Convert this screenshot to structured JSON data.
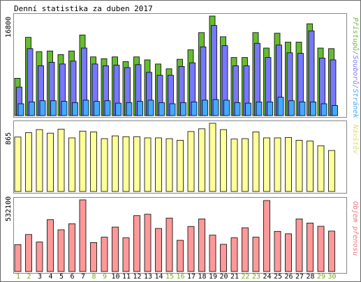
{
  "chart_data": {
    "type": "bar",
    "title": "Denní statistika za duben 2017",
    "categories": [
      "1",
      "2",
      "3",
      "4",
      "5",
      "6",
      "7",
      "8",
      "9",
      "10",
      "11",
      "12",
      "13",
      "14",
      "15",
      "16",
      "17",
      "18",
      "19",
      "20",
      "21",
      "22",
      "23",
      "24",
      "25",
      "26",
      "27",
      "28",
      "29",
      "30"
    ],
    "weekend_days": [
      "1",
      "2",
      "8",
      "9",
      "15",
      "16",
      "22",
      "23",
      "29",
      "30"
    ],
    "panels": [
      {
        "id": "hits",
        "ymax_label": "16800",
        "ymax": 16800,
        "legend": [
          {
            "text": "Přístupů",
            "color": "#66bb33"
          },
          {
            "text": "/",
            "color": "#7777cc"
          },
          {
            "text": "Souborů",
            "color": "#7777ff"
          },
          {
            "text": "/",
            "color": "#7777cc"
          },
          {
            "text": "Stránek",
            "color": "#44aaff"
          }
        ],
        "series": [
          {
            "name": "Přístupů",
            "color": "#66bb33",
            "values": [
              6300,
              13200,
              10800,
              10900,
              10300,
              10900,
              13600,
              9900,
              9600,
              9900,
              9100,
              9900,
              9400,
              8700,
              7900,
              9500,
              11100,
              14000,
              16800,
              13300,
              9800,
              9800,
              14000,
              11400,
              13900,
              12400,
              12400,
              15500,
              11400,
              11300
            ]
          },
          {
            "name": "Souborů",
            "color": "#7777ff",
            "values": [
              4800,
              11300,
              8400,
              9000,
              8700,
              9200,
              11400,
              8700,
              8400,
              8500,
              8100,
              8600,
              7300,
              6800,
              6800,
              8300,
              8900,
              11600,
              15200,
              11800,
              8400,
              8400,
              12200,
              9800,
              11900,
              10600,
              10500,
              14300,
              9700,
              9400
            ]
          },
          {
            "name": "Stránek",
            "color": "#44aaff",
            "values": [
              2000,
              2300,
              2500,
              2500,
              2400,
              2200,
              2600,
              2400,
              2500,
              2100,
              2200,
              2400,
              2600,
              2200,
              2000,
              2200,
              2300,
              2600,
              2700,
              2600,
              2200,
              2100,
              2300,
              2300,
              3100,
              2500,
              2300,
              2300,
              2000,
              1700
            ]
          }
        ]
      },
      {
        "id": "visits",
        "ymax_label": "865",
        "ymax": 865,
        "legend": [
          {
            "text": "Návštěv",
            "color": "#dddd66"
          }
        ],
        "series": [
          {
            "name": "Návštěv",
            "color": "#ffff99",
            "values": [
              690,
              745,
              785,
              740,
              790,
              680,
              765,
              755,
              670,
              705,
              695,
              695,
              680,
              680,
              670,
              650,
              760,
              795,
              865,
              785,
              665,
              670,
              755,
              680,
              680,
              685,
              650,
              640,
              580,
              520
            ]
          }
        ]
      },
      {
        "id": "traffic",
        "ymax_label": "532100",
        "ymax": 532100,
        "legend": [
          {
            "text": "Objem přenosu",
            "color": "#ee7777"
          }
        ],
        "series": [
          {
            "name": "Objem přenosu",
            "color": "#ff9999",
            "values": [
              200000,
              275000,
              219000,
              385000,
              310000,
              355000,
              532100,
              215000,
              255000,
              330000,
              250000,
              415000,
              425000,
              320000,
              397000,
              232000,
              335000,
              390000,
              270000,
              202000,
              250000,
              325000,
              255000,
              527000,
              298000,
              280000,
              390000,
              360000,
              336000,
              300000
            ]
          }
        ]
      }
    ],
    "colors": {
      "background": "#ffffff",
      "frame": "#888888",
      "weekday_label": "#000000",
      "weekend_label": "#77aa22",
      "title": "#000000"
    }
  }
}
